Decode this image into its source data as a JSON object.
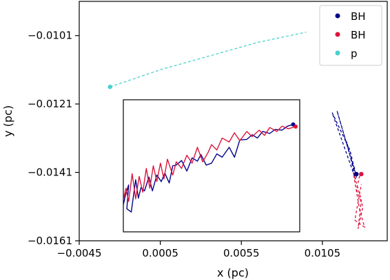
{
  "chart_data": {
    "type": "line",
    "xlabel": "x (pc)",
    "ylabel": "y (pc)",
    "xlim": [
      -0.0045,
      0.0145
    ],
    "ylim": [
      -0.0161,
      -0.0091
    ],
    "xticks": [
      -0.0045,
      0.0005,
      0.0055,
      0.0105
    ],
    "xtick_labels": [
      "−0.0045",
      "0.0005",
      "0.0055",
      "0.0105"
    ],
    "yticks": [
      -0.0101,
      -0.0121,
      -0.0141,
      -0.0161
    ],
    "ytick_labels": [
      "−0.0101",
      "−0.0121",
      "−0.0141",
      "−0.0161"
    ],
    "grid": false,
    "legend_position": "top-right",
    "series": [
      {
        "name": "BH",
        "color": "#00008b",
        "marker": [
          0.0126,
          -0.01415
        ],
        "path": [
          [
            0.0125,
            -0.014
          ],
          [
            0.0123,
            -0.01375
          ],
          [
            0.0114,
            -0.0123
          ],
          [
            0.0126,
            -0.01425
          ],
          [
            0.0122,
            -0.01345
          ],
          [
            0.0111,
            -0.01235
          ],
          [
            0.01255,
            -0.0143
          ],
          [
            0.012,
            -0.0132
          ]
        ]
      },
      {
        "name": "BH",
        "color": "#dc143c",
        "marker": [
          0.0129,
          -0.01415
        ],
        "path": [
          [
            0.0128,
            -0.0142
          ],
          [
            0.0126,
            -0.0146
          ],
          [
            0.013,
            -0.0151
          ],
          [
            0.0127,
            -0.01575
          ],
          [
            0.0129,
            -0.0149
          ],
          [
            0.0124,
            -0.0141
          ],
          [
            0.0128,
            -0.0152
          ],
          [
            0.0131,
            -0.0157
          ],
          [
            0.0125,
            -0.0155
          ],
          [
            0.0129,
            -0.01445
          ]
        ]
      },
      {
        "name": "p",
        "color": "#48d1cc",
        "marker": [
          -0.0026,
          -0.0116
        ],
        "path": [
          [
            -0.0026,
            -0.0116
          ],
          [
            0.0005,
            -0.0111
          ],
          [
            0.0035,
            -0.0107
          ],
          [
            0.0065,
            -0.0103
          ],
          [
            0.0095,
            -0.01
          ]
        ]
      }
    ],
    "inset": {
      "xlim": [
        0,
        1
      ],
      "ylim": [
        0,
        1
      ],
      "series": [
        {
          "name": "BH",
          "color": "#00008b",
          "points": [
            [
              0.0,
              0.205
            ],
            [
              0.012,
              0.28
            ],
            [
              0.03,
              0.355
            ],
            [
              0.02,
              0.175
            ],
            [
              0.045,
              0.15
            ],
            [
              0.07,
              0.395
            ],
            [
              0.085,
              0.255
            ],
            [
              0.1,
              0.335
            ],
            [
              0.12,
              0.31
            ],
            [
              0.145,
              0.415
            ],
            [
              0.165,
              0.31
            ],
            [
              0.19,
              0.43
            ],
            [
              0.215,
              0.38
            ],
            [
              0.235,
              0.445
            ],
            [
              0.26,
              0.37
            ],
            [
              0.28,
              0.5
            ],
            [
              0.3,
              0.505
            ],
            [
              0.33,
              0.54
            ],
            [
              0.36,
              0.46
            ],
            [
              0.39,
              0.56
            ],
            [
              0.42,
              0.535
            ],
            [
              0.44,
              0.585
            ],
            [
              0.47,
              0.505
            ],
            [
              0.5,
              0.52
            ],
            [
              0.53,
              0.59
            ],
            [
              0.56,
              0.565
            ],
            [
              0.6,
              0.64
            ],
            [
              0.63,
              0.565
            ],
            [
              0.66,
              0.695
            ],
            [
              0.7,
              0.7
            ],
            [
              0.73,
              0.735
            ],
            [
              0.76,
              0.71
            ],
            [
              0.79,
              0.76
            ],
            [
              0.83,
              0.745
            ],
            [
              0.86,
              0.775
            ],
            [
              0.9,
              0.77
            ],
            [
              0.93,
              0.8
            ],
            [
              0.963,
              0.813
            ]
          ]
        },
        {
          "name": "BH",
          "color": "#dc143c",
          "points": [
            [
              0.0,
              0.245
            ],
            [
              0.015,
              0.33
            ],
            [
              0.03,
              0.23
            ],
            [
              0.05,
              0.44
            ],
            [
              0.07,
              0.25
            ],
            [
              0.09,
              0.42
            ],
            [
              0.11,
              0.3
            ],
            [
              0.13,
              0.48
            ],
            [
              0.15,
              0.33
            ],
            [
              0.17,
              0.5
            ],
            [
              0.19,
              0.38
            ],
            [
              0.21,
              0.52
            ],
            [
              0.23,
              0.4
            ],
            [
              0.25,
              0.55
            ],
            [
              0.28,
              0.43
            ],
            [
              0.3,
              0.53
            ],
            [
              0.33,
              0.48
            ],
            [
              0.36,
              0.58
            ],
            [
              0.39,
              0.52
            ],
            [
              0.42,
              0.64
            ],
            [
              0.45,
              0.53
            ],
            [
              0.48,
              0.6
            ],
            [
              0.5,
              0.66
            ],
            [
              0.53,
              0.62
            ],
            [
              0.56,
              0.71
            ],
            [
              0.6,
              0.68
            ],
            [
              0.63,
              0.75
            ],
            [
              0.66,
              0.69
            ],
            [
              0.7,
              0.76
            ],
            [
              0.73,
              0.72
            ],
            [
              0.77,
              0.77
            ],
            [
              0.8,
              0.73
            ],
            [
              0.83,
              0.79
            ],
            [
              0.87,
              0.76
            ],
            [
              0.9,
              0.8
            ],
            [
              0.935,
              0.78
            ],
            [
              0.977,
              0.797
            ]
          ]
        }
      ]
    }
  }
}
